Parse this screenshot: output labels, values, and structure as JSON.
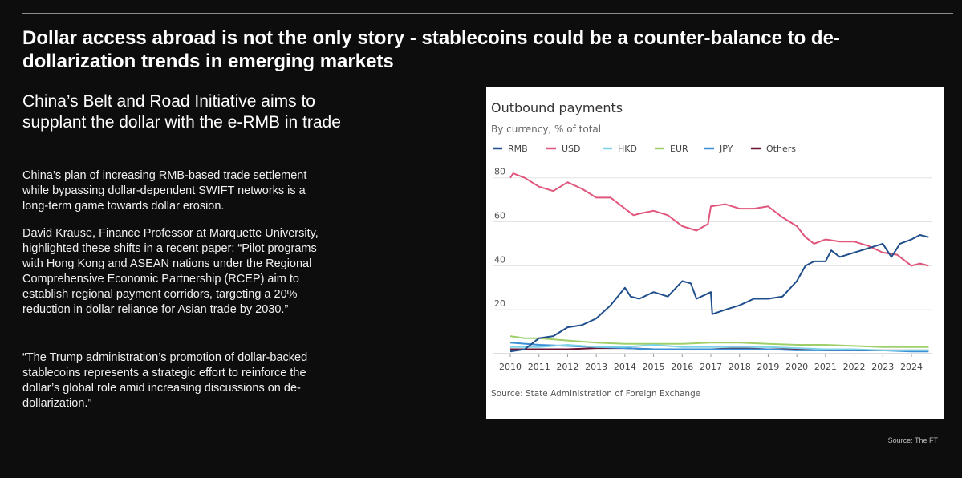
{
  "headline": "Dollar access abroad is not the only story - stablecoins could be a counter-balance to de-dollarization trends in emerging markets",
  "subhead": "China’s Belt and Road Initiative aims to supplant the dollar with the e-RMB in trade",
  "paragraphs": [
    "China’s plan of increasing RMB-based trade settlement while bypassing dollar-dependent SWIFT networks is a long-term game towards dollar erosion.",
    "David Krause, Finance Professor at Marquette University, highlighted these shifts in a recent paper: “Pilot programs with Hong Kong and ASEAN nations under the Regional Comprehensive Economic Partnership (RCEP) aim to establish regional payment corridors, targeting a 20% reduction in dollar reliance for Asian trade by 2030.”",
    "“The Trump administration’s promotion of dollar-backed stablecoins represents a strategic effort to reinforce the dollar’s global role amid increasing discussions on de-dollarization.”"
  ],
  "footer_source": "Source: The FT",
  "chart_data": {
    "type": "line",
    "title": "Outbound payments",
    "subtitle": "By currency, % of total",
    "source": "Source: State Administration of Foreign Exchange",
    "xlim": [
      2010,
      2024.7
    ],
    "ylim": [
      0,
      85
    ],
    "xticks": [
      "2010",
      "2011",
      "2012",
      "2013",
      "2014",
      "2015",
      "2016",
      "2017",
      "2018",
      "2019",
      "2020",
      "2021",
      "2022",
      "2023",
      "2024"
    ],
    "yticks": [
      "20",
      "40",
      "60",
      "80"
    ],
    "legend_position": "top-left",
    "grid": true,
    "series": [
      {
        "name": "RMB",
        "color": "#1f4e8c",
        "points": [
          [
            2010,
            1
          ],
          [
            2010.5,
            2
          ],
          [
            2011,
            7
          ],
          [
            2011.5,
            8
          ],
          [
            2012,
            12
          ],
          [
            2012.5,
            13
          ],
          [
            2013,
            16
          ],
          [
            2013.5,
            22
          ],
          [
            2014,
            30
          ],
          [
            2014.2,
            26
          ],
          [
            2014.5,
            25
          ],
          [
            2015,
            28
          ],
          [
            2015.5,
            26
          ],
          [
            2016,
            33
          ],
          [
            2016.3,
            32
          ],
          [
            2016.5,
            25
          ],
          [
            2017,
            28
          ],
          [
            2017.05,
            18
          ],
          [
            2017.5,
            20
          ],
          [
            2018,
            22
          ],
          [
            2018.5,
            25
          ],
          [
            2019,
            25
          ],
          [
            2019.5,
            26
          ],
          [
            2020,
            33
          ],
          [
            2020.3,
            40
          ],
          [
            2020.6,
            42
          ],
          [
            2021,
            42
          ],
          [
            2021.2,
            47
          ],
          [
            2021.5,
            44
          ],
          [
            2022,
            46
          ],
          [
            2022.5,
            48
          ],
          [
            2023,
            50
          ],
          [
            2023.3,
            44
          ],
          [
            2023.6,
            50
          ],
          [
            2024,
            52
          ],
          [
            2024.3,
            54
          ],
          [
            2024.6,
            53
          ]
        ]
      },
      {
        "name": "USD",
        "color": "#e0567c",
        "points": [
          [
            2010,
            80
          ],
          [
            2010.1,
            82
          ],
          [
            2010.5,
            80
          ],
          [
            2011,
            76
          ],
          [
            2011.5,
            74
          ],
          [
            2012,
            78
          ],
          [
            2012.5,
            75
          ],
          [
            2013,
            71
          ],
          [
            2013.5,
            71
          ],
          [
            2014,
            66
          ],
          [
            2014.3,
            63
          ],
          [
            2014.6,
            64
          ],
          [
            2015,
            65
          ],
          [
            2015.5,
            63
          ],
          [
            2016,
            58
          ],
          [
            2016.5,
            56
          ],
          [
            2016.9,
            59
          ],
          [
            2017,
            67
          ],
          [
            2017.5,
            68
          ],
          [
            2018,
            66
          ],
          [
            2018.5,
            66
          ],
          [
            2019,
            67
          ],
          [
            2019.5,
            62
          ],
          [
            2020,
            58
          ],
          [
            2020.3,
            53
          ],
          [
            2020.6,
            50
          ],
          [
            2021,
            52
          ],
          [
            2021.5,
            51
          ],
          [
            2022,
            51
          ],
          [
            2022.5,
            49
          ],
          [
            2023,
            46
          ],
          [
            2023.5,
            45
          ],
          [
            2024,
            40
          ],
          [
            2024.3,
            41
          ],
          [
            2024.6,
            40
          ]
        ]
      },
      {
        "name": "HKD",
        "color": "#7fd3e8",
        "points": [
          [
            2010,
            3
          ],
          [
            2011,
            3
          ],
          [
            2012,
            4
          ],
          [
            2013,
            3
          ],
          [
            2014,
            3
          ],
          [
            2015,
            4
          ],
          [
            2016,
            3
          ],
          [
            2017,
            3
          ],
          [
            2018,
            3
          ],
          [
            2019,
            3
          ],
          [
            2020,
            2.5
          ],
          [
            2021,
            2
          ],
          [
            2022,
            2
          ],
          [
            2023,
            1.5
          ],
          [
            2024,
            1.5
          ],
          [
            2024.6,
            1.5
          ]
        ]
      },
      {
        "name": "EUR",
        "color": "#9fcf6b",
        "points": [
          [
            2010,
            8
          ],
          [
            2010.5,
            7
          ],
          [
            2011,
            7
          ],
          [
            2012,
            6
          ],
          [
            2013,
            5
          ],
          [
            2014,
            4.5
          ],
          [
            2015,
            4.5
          ],
          [
            2016,
            4.5
          ],
          [
            2017,
            5
          ],
          [
            2018,
            5
          ],
          [
            2019,
            4.5
          ],
          [
            2020,
            4
          ],
          [
            2021,
            4
          ],
          [
            2022,
            3.5
          ],
          [
            2023,
            3
          ],
          [
            2024,
            3
          ],
          [
            2024.6,
            3
          ]
        ]
      },
      {
        "name": "JPY",
        "color": "#3a8fd6",
        "points": [
          [
            2010,
            5
          ],
          [
            2011,
            4
          ],
          [
            2012,
            3.5
          ],
          [
            2013,
            3
          ],
          [
            2014,
            2.5
          ],
          [
            2015,
            2
          ],
          [
            2016,
            2
          ],
          [
            2017,
            2
          ],
          [
            2018,
            2
          ],
          [
            2019,
            2
          ],
          [
            2020,
            1.5
          ],
          [
            2021,
            1.5
          ],
          [
            2022,
            1.5
          ],
          [
            2023,
            1.5
          ],
          [
            2024,
            1
          ],
          [
            2024.6,
            1
          ]
        ]
      },
      {
        "name": "Others",
        "color": "#6b1233",
        "points": [
          [
            2010,
            2
          ],
          [
            2011,
            2
          ],
          [
            2012,
            2
          ],
          [
            2013,
            2.5
          ],
          [
            2014,
            2.5
          ],
          [
            2015,
            2
          ],
          [
            2016,
            2
          ],
          [
            2017,
            2
          ],
          [
            2018,
            2.5
          ],
          [
            2019,
            2
          ],
          [
            2020,
            2
          ],
          [
            2021,
            1.5
          ],
          [
            2022,
            1.5
          ],
          [
            2023,
            1.5
          ],
          [
            2024,
            1.5
          ],
          [
            2024.6,
            1.5
          ]
        ]
      }
    ]
  }
}
